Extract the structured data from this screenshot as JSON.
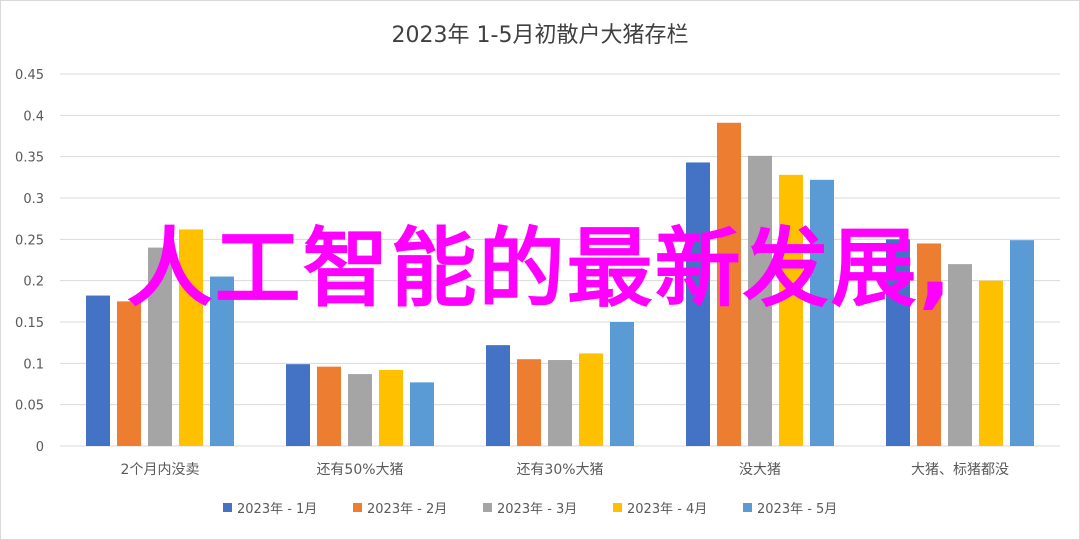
{
  "colors": {
    "series": [
      "#4472c4",
      "#ed7d31",
      "#a5a5a5",
      "#ffc000",
      "#5b9bd5"
    ],
    "grid": "#d9d9d9",
    "axis_text": "#595959",
    "title_text": "#404040",
    "overlay_text": "#ff00ff"
  },
  "overlay_text": "人工智能的最新发展,",
  "chart_data": {
    "type": "bar",
    "title": "2023年 1-5月初散户大猪存栏",
    "xlabel": "",
    "ylabel": "",
    "ylim": [
      0,
      0.45
    ],
    "yticks": [
      "0",
      "0.05",
      "0.1",
      "0.15",
      "0.2",
      "0.25",
      "0.3",
      "0.35",
      "0.4",
      "0.45"
    ],
    "grid": true,
    "legend_position": "bottom",
    "categories": [
      "2个月内没卖",
      "还有50%大猪",
      "还有30%大猪",
      "没大猪",
      "大猪、标猪都没"
    ],
    "series": [
      {
        "name": "2023年 - 1月",
        "values": [
          0.182,
          0.099,
          0.122,
          0.343,
          0.25
        ]
      },
      {
        "name": "2023年 - 2月",
        "values": [
          0.175,
          0.096,
          0.105,
          0.391,
          0.245
        ]
      },
      {
        "name": "2023年 - 3月",
        "values": [
          0.24,
          0.087,
          0.104,
          0.351,
          0.22
        ]
      },
      {
        "name": "2023年 - 4月",
        "values": [
          0.262,
          0.092,
          0.112,
          0.328,
          0.2
        ]
      },
      {
        "name": "2023年 - 5月",
        "values": [
          0.205,
          0.077,
          0.15,
          0.322,
          0.249
        ]
      }
    ]
  }
}
